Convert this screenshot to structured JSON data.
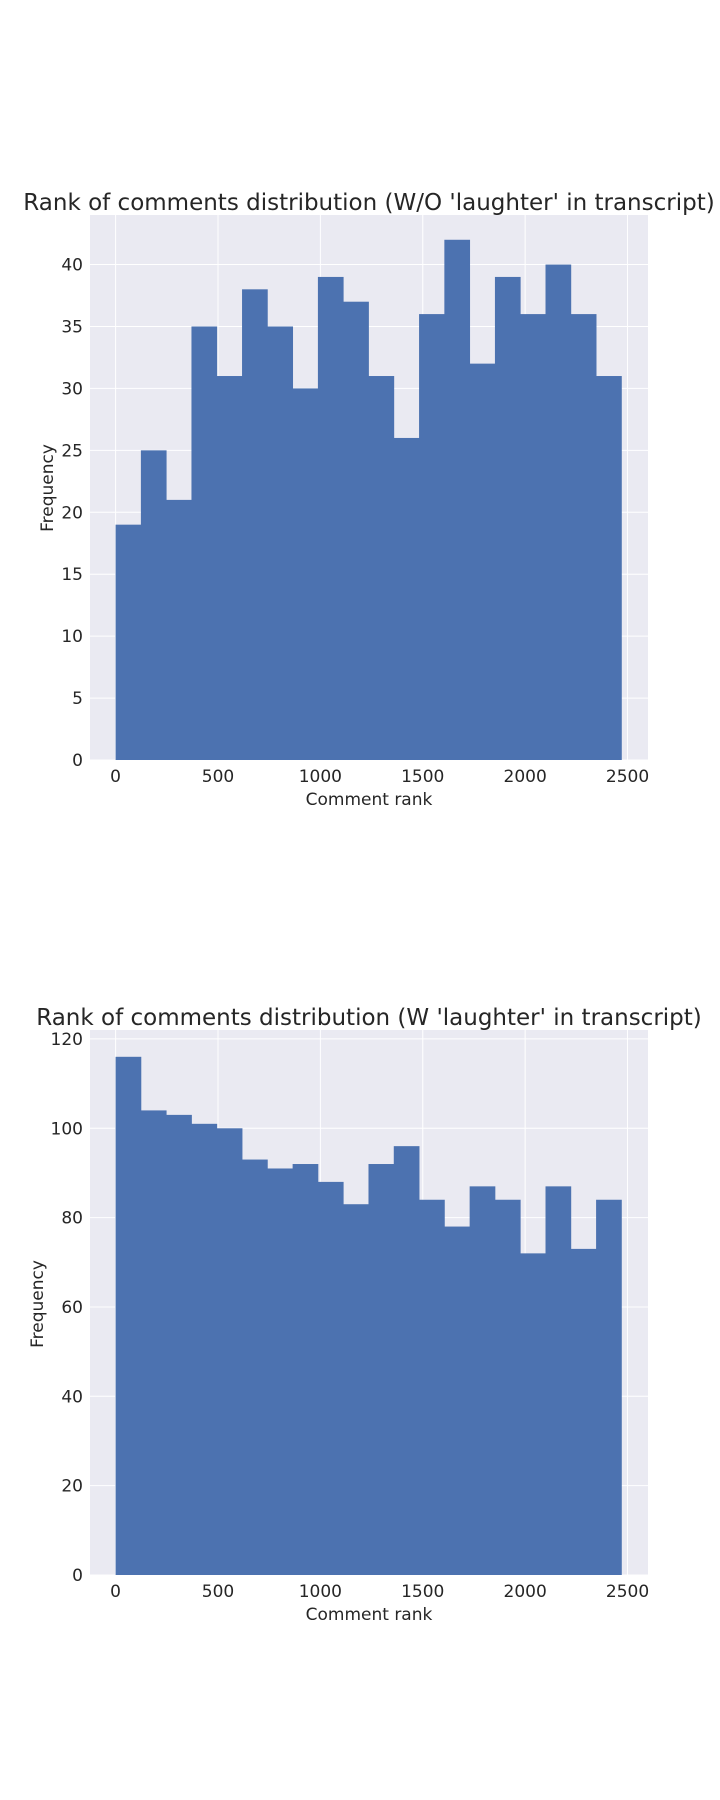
{
  "chart_data": [
    {
      "type": "bar",
      "title": "Rank of comments distribution (W/O 'laughter' in transcript)",
      "xlabel": "Comment rank",
      "ylabel": "Frequency",
      "xlim": [
        -125,
        2600
      ],
      "ylim": [
        0,
        44
      ],
      "xticks": [
        "0",
        "500",
        "1000",
        "1500",
        "2000",
        "2500"
      ],
      "yticks": [
        "0",
        "5",
        "10",
        "15",
        "20",
        "25",
        "30",
        "35",
        "40"
      ],
      "bin_edges": [
        0,
        123.5,
        247,
        370.5,
        494,
        617.5,
        741,
        864.5,
        988,
        1111.5,
        1235,
        1358.5,
        1482,
        1605.5,
        1729,
        1852.5,
        1976,
        2099.5,
        2223,
        2346.5,
        2470
      ],
      "values": [
        19,
        25,
        21,
        35,
        31,
        38,
        35,
        30,
        39,
        37,
        31,
        26,
        36,
        42,
        32,
        39,
        36,
        40,
        36,
        31
      ],
      "grid": true,
      "bar_color": "#4c72b0",
      "background": "#eaeaf2"
    },
    {
      "type": "bar",
      "title": "Rank of comments distribution (W 'laughter' in transcript)",
      "xlabel": "Comment rank",
      "ylabel": "Frequency",
      "xlim": [
        -125,
        2600
      ],
      "ylim": [
        0,
        122
      ],
      "xticks": [
        "0",
        "500",
        "1000",
        "1500",
        "2000",
        "2500"
      ],
      "yticks": [
        "0",
        "20",
        "40",
        "60",
        "80",
        "100",
        "120"
      ],
      "bin_edges": [
        0,
        123.5,
        247,
        370.5,
        494,
        617.5,
        741,
        864.5,
        988,
        1111.5,
        1235,
        1358.5,
        1482,
        1605.5,
        1729,
        1852.5,
        1976,
        2099.5,
        2223,
        2346.5,
        2470
      ],
      "values": [
        116,
        104,
        103,
        101,
        100,
        93,
        91,
        92,
        88,
        83,
        92,
        96,
        84,
        78,
        87,
        84,
        72,
        87,
        73,
        84
      ],
      "grid": true,
      "bar_color": "#4c72b0",
      "background": "#eaeaf2"
    }
  ]
}
